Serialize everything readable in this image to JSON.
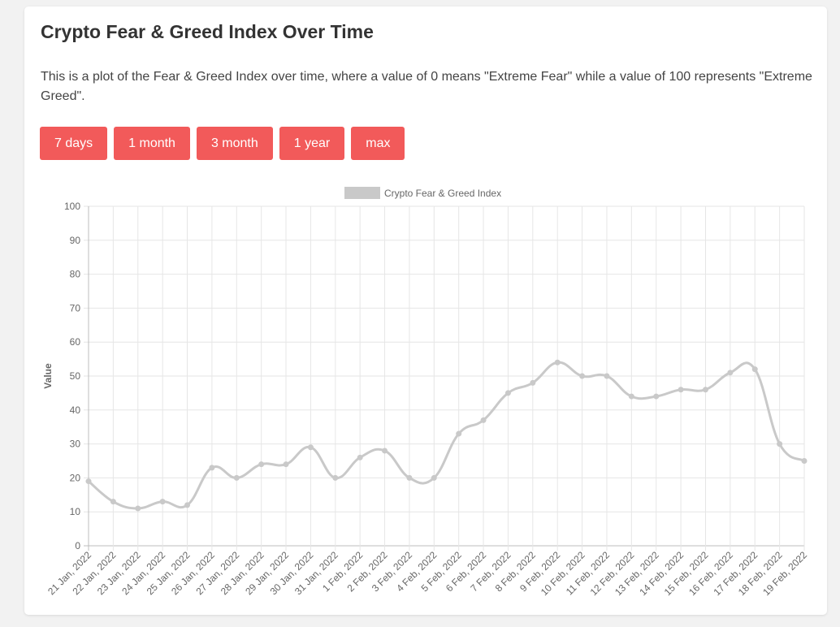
{
  "page": {
    "title": "Crypto Fear & Greed Index Over Time",
    "description": "This is a plot of the Fear & Greed Index over time, where a value of 0 means \"Extreme Fear\" while a value of 100 represents \"Extreme Greed\"."
  },
  "range_buttons": [
    {
      "label": "7 days"
    },
    {
      "label": "1 month"
    },
    {
      "label": "3 month"
    },
    {
      "label": "1 year"
    },
    {
      "label": "max"
    }
  ],
  "colors": {
    "button": "#f25a5a",
    "line": "#c9c9c9",
    "grid": "#e6e6e6",
    "tick_text": "#666666"
  },
  "chart_data": {
    "type": "line",
    "title": "",
    "xlabel": "",
    "ylabel": "Value",
    "ylim": [
      0,
      100
    ],
    "yticks": [
      0,
      10,
      20,
      30,
      40,
      50,
      60,
      70,
      80,
      90,
      100
    ],
    "grid": true,
    "legend_position": "top",
    "categories": [
      "21 Jan, 2022",
      "22 Jan, 2022",
      "23 Jan, 2022",
      "24 Jan, 2022",
      "25 Jan, 2022",
      "26 Jan, 2022",
      "27 Jan, 2022",
      "28 Jan, 2022",
      "29 Jan, 2022",
      "30 Jan, 2022",
      "31 Jan, 2022",
      "1 Feb, 2022",
      "2 Feb, 2022",
      "3 Feb, 2022",
      "4 Feb, 2022",
      "5 Feb, 2022",
      "6 Feb, 2022",
      "7 Feb, 2022",
      "8 Feb, 2022",
      "9 Feb, 2022",
      "10 Feb, 2022",
      "11 Feb, 2022",
      "12 Feb, 2022",
      "13 Feb, 2022",
      "14 Feb, 2022",
      "15 Feb, 2022",
      "16 Feb, 2022",
      "17 Feb, 2022",
      "18 Feb, 2022",
      "19 Feb, 2022"
    ],
    "series": [
      {
        "name": "Crypto Fear & Greed Index",
        "values": [
          19,
          13,
          11,
          13,
          12,
          23,
          20,
          24,
          24,
          29,
          20,
          26,
          28,
          20,
          20,
          33,
          37,
          45,
          48,
          54,
          50,
          50,
          44,
          44,
          46,
          46,
          51,
          52,
          30,
          25
        ]
      }
    ]
  }
}
